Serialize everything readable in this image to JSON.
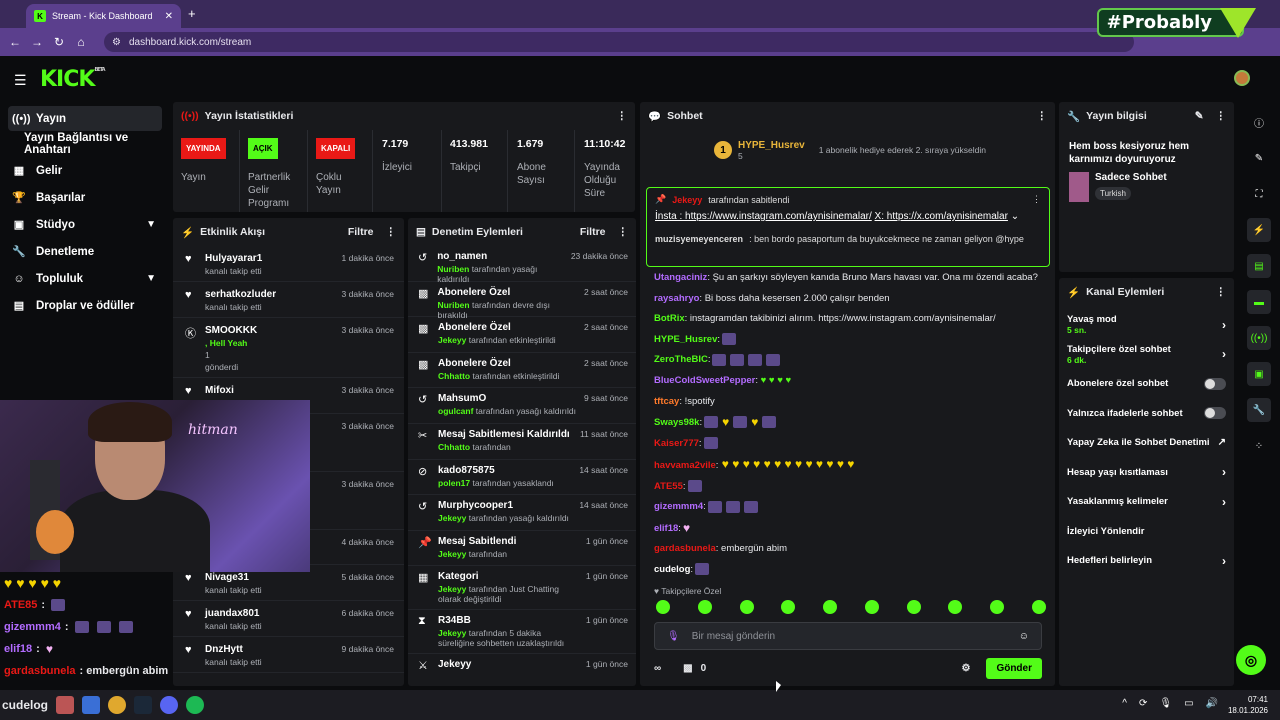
{
  "browser": {
    "tab_title": "Stream - Kick Dashboard",
    "url": "dashboard.kick.com/stream"
  },
  "watermark": "#Probably",
  "app": {
    "logo": "KICK",
    "logo_badge": "BETA"
  },
  "sidebar": {
    "items": [
      {
        "label": "Yayın",
        "icon": "broadcast-icon"
      },
      {
        "label": "Yayın Bağlantısı ve Anahtarı"
      },
      {
        "label": "Gelir",
        "icon": "revenue-icon"
      },
      {
        "label": "Başarılar",
        "icon": "trophy-icon"
      },
      {
        "label": "Stüdyo",
        "icon": "studio-icon"
      },
      {
        "label": "Denetleme",
        "icon": "wrench-icon"
      },
      {
        "label": "Topluluk",
        "icon": "community-icon"
      },
      {
        "label": "Droplar ve ödüller",
        "icon": "drops-icon"
      }
    ]
  },
  "stats": {
    "title": "Yayın İstatistikleri",
    "live_badge": "YAYINDA",
    "live_label": "Yayın",
    "partner_badge": "AÇIK",
    "partner_label": "Partnerlik Gelir Programı",
    "multi_badge": "KAPALI",
    "multi_label": "Çoklu Yayın",
    "viewers": "7.179",
    "viewers_label": "İzleyici",
    "followers": "413.981",
    "followers_label": "Takipçi",
    "subs": "1.679",
    "subs_label": "Abone Sayısı",
    "duration": "11:10:42",
    "duration_label": "Yayında Olduğu Süre"
  },
  "activity": {
    "title": "Etkinlik Akışı",
    "filter": "Filtre",
    "rows": [
      {
        "name": "Hulyayarar1",
        "sub": "kanalı takip etti",
        "time": "1 dakika önce"
      },
      {
        "name": "serhatkozluder",
        "sub": "kanalı takip etti",
        "time": "3 dakika önce"
      },
      {
        "name": "SMOOKKK",
        "sub": ", Hell Yeah",
        "time": "3 dakika önce"
      },
      {
        "name": "Mifoxi",
        "sub": "",
        "time": "3 dakika önce"
      },
      {
        "name": "",
        "sub": "",
        "time": "3 dakika önce"
      },
      {
        "name": "",
        "sub": "",
        "time": "3 dakika önce"
      },
      {
        "name": "",
        "sub": "",
        "time": "4 dakika önce"
      },
      {
        "name": "Nivage31",
        "sub": "kanalı takip etti",
        "time": "5 dakika önce"
      },
      {
        "name": "juandax801",
        "sub": "kanalı takip etti",
        "time": "6 dakika önce"
      },
      {
        "name": "DnzHytt",
        "sub": "kanalı takip etti",
        "time": "9 dakika önce"
      }
    ],
    "smook_extra": "1",
    "smook_sent": "gönderdi"
  },
  "moderation": {
    "title": "Denetim Eylemleri",
    "filter": "Filtre",
    "rows": [
      {
        "name": "no_namen",
        "actor": "Nuriben",
        "text": "tarafından yasağı kaldırıldı",
        "time": "23 dakika önce"
      },
      {
        "name": "Abonelere Özel",
        "actor": "Nuriben",
        "text": "tarafından devre dışı bırakıldı",
        "time": "2 saat önce"
      },
      {
        "name": "Abonelere Özel",
        "actor": "Jekeyy",
        "text": "tarafından etkinleştirildi",
        "time": "2 saat önce"
      },
      {
        "name": "Abonelere Özel",
        "actor": "Chhatto",
        "text": "tarafından etkinleştirildi",
        "time": "2 saat önce"
      },
      {
        "name": "MahsumO",
        "actor": "ogulcanf",
        "text": "tarafından yasağı kaldırıldı",
        "time": "9 saat önce"
      },
      {
        "name": "Mesaj Sabitlemesi Kaldırıldı",
        "actor": "Chhatto",
        "text": "tarafından",
        "time": "11 saat önce"
      },
      {
        "name": "kado875875",
        "actor": "polen17",
        "text": "tarafından yasaklandı",
        "time": "14 saat önce"
      },
      {
        "name": "Murphycooper1",
        "actor": "Jekeyy",
        "text": "tarafından yasağı kaldırıldı",
        "time": "14 saat önce"
      },
      {
        "name": "Mesaj Sabitlendi",
        "actor": "Jekeyy",
        "text": "tarafından",
        "time": "1 gün önce"
      },
      {
        "name": "Kategori",
        "actor": "Jekeyy",
        "text": "tarafından Just Chatting olarak değiştirildi",
        "time": "1 gün önce"
      },
      {
        "name": "R34BB",
        "actor": "Jekeyy",
        "text": "tarafından 5 dakika süreliğine sohbetten uzaklaştırıldı",
        "time": "1 gün önce"
      },
      {
        "name": "Jekeyy",
        "actor": "",
        "text": "",
        "time": "1 gün önce"
      }
    ]
  },
  "chat": {
    "title": "Sohbet",
    "gift_user": "HYPE_Husrev",
    "gift_count": "5",
    "gift_msg": "1 abonelik hediye ederek 2. sıraya yükseldin",
    "pinned_by": "Jekeyy",
    "pinned_text": "tarafından sabitlendi",
    "pinned_link1": "İnsta : https://www.instagram.com/aynisinemalar/",
    "pinned_link2": "X: https://x.com/aynisinemalar",
    "messages": [
      {
        "user": "muzisyemeyenceren",
        "color": "#e8b53a",
        "text": ": ben bordo pasaportum da buyukcekmece ne zaman geliyon @hype"
      },
      {
        "user": "Utangaciniz",
        "color": "#b36cff",
        "text": ": Şu an şarkıyı söyleyen kanıda Bruno Mars havası var. Ona mı özendi acaba?"
      },
      {
        "user": "raysahryo",
        "color": "#b36cff",
        "text": ": Bi boss daha kesersen 2.000 çalışır benden"
      },
      {
        "user": "BotRix",
        "color": "#53fc18",
        "text": ": instagramdan takibinizi alırım. https://www.instagram.com/aynisinemalar/"
      },
      {
        "user": "HYPE_Husrev",
        "color": "#53fc18",
        "text": ":"
      },
      {
        "user": "ZeroTheBIC",
        "color": "#53fc18",
        "text": ":"
      },
      {
        "user": "BlueColdSweetPepper",
        "color": "#b36cff",
        "text": ":"
      },
      {
        "user": "tftcay",
        "color": "#ff7a2b",
        "text": ": !spotify"
      },
      {
        "user": "Sways98k",
        "color": "#53fc18",
        "text": ":"
      },
      {
        "user": "Kaiser777",
        "color": "#e91916",
        "text": ":"
      },
      {
        "user": "havvama2vile",
        "color": "#e91916",
        "text": ":"
      },
      {
        "user": "ATE55",
        "color": "#e91916",
        "text": ":"
      },
      {
        "user": "gizemmm4",
        "color": "#b36cff",
        "text": ":"
      },
      {
        "user": "elif18",
        "color": "#b36cff",
        "text": ":"
      },
      {
        "user": "gardasbunela",
        "color": "#e91916",
        "text": ": embergün abim"
      },
      {
        "user": "cudelog",
        "color": "#fff",
        "text": ":"
      }
    ],
    "follow_only": "Takipçilere Özel",
    "input_placeholder": "Bir mesaj gönderin",
    "points": "0",
    "send": "Gönder"
  },
  "info": {
    "title": "Yayın bilgisi",
    "stream_title": "Hem boss kesiyoruz hem karnımızı doyuruyoruz",
    "category": "Sadece Sohbet",
    "tag": "Turkish"
  },
  "channel": {
    "title": "Kanal Eylemleri",
    "rows": [
      {
        "label": "Yavaş mod",
        "sub": "5 sn.",
        "type": "arrow"
      },
      {
        "label": "Takipçilere özel sohbet",
        "sub": "6 dk.",
        "type": "arrow"
      },
      {
        "label": "Abonelere özel sohbet",
        "sub": "",
        "type": "toggle"
      },
      {
        "label": "Yalnızca ifadelerle sohbet",
        "sub": "",
        "type": "toggle"
      },
      {
        "label": "Yapay Zeka ile Sohbet Denetimi",
        "sub": "",
        "type": "ext"
      },
      {
        "label": "Hesap yaşı kısıtlaması",
        "sub": "",
        "type": "arrow"
      },
      {
        "label": "Yasaklanmış kelimeler",
        "sub": "",
        "type": "arrow"
      },
      {
        "label": "İzleyici Yönlendir",
        "sub": "",
        "type": "none"
      },
      {
        "label": "Hedefleri belirleyin",
        "sub": "",
        "type": "arrow"
      }
    ]
  },
  "overlay": {
    "neon": "hitman",
    "lines": [
      {
        "user": "ATE85",
        "color": "#e91916"
      },
      {
        "user": "gizemmm4",
        "color": "#b36cff"
      },
      {
        "user": "elif18",
        "color": "#b36cff"
      },
      {
        "user": "gardasbunela",
        "color": "#e91916",
        "text": ": embergün abim"
      }
    ],
    "streamer_name": "cudelog"
  },
  "taskbar": {
    "time": "07:41",
    "date": "18.01.2026"
  },
  "colors": {
    "accent": "#53fc18",
    "live": "#e91916",
    "panel": "#18191c",
    "chrome": "#5b3f8d"
  }
}
